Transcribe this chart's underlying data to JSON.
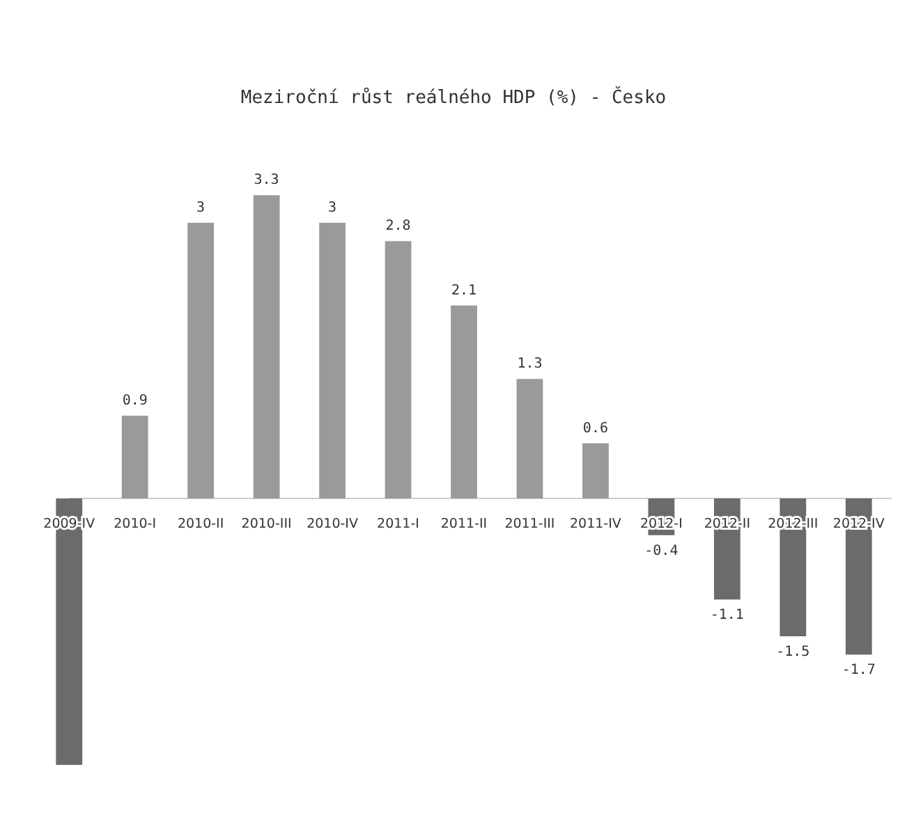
{
  "chart_data": {
    "type": "bar",
    "title": "Meziroční růst reálného HDP (%) - Česko",
    "categories": [
      "2009-IV",
      "2010-I",
      "2010-II",
      "2010-III",
      "2010-IV",
      "2011-I",
      "2011-II",
      "2011-III",
      "2011-IV",
      "2012-I",
      "2012-II",
      "2012-III",
      "2012-IV"
    ],
    "values": [
      -2.9,
      0.9,
      3,
      3.3,
      3,
      2.8,
      2.1,
      1.3,
      0.6,
      -0.4,
      -1.1,
      -1.5,
      -1.7
    ],
    "colors": [
      "#6b6b6b",
      "#9a9a9a",
      "#9a9a9a",
      "#9a9a9a",
      "#9a9a9a",
      "#9a9a9a",
      "#9a9a9a",
      "#9a9a9a",
      "#9a9a9a",
      "#6b6b6b",
      "#6b6b6b",
      "#6b6b6b",
      "#6b6b6b"
    ],
    "value_labels": [
      null,
      "0.9",
      "3",
      "3.3",
      "3",
      "2.8",
      "2.1",
      "1.3",
      "0.6",
      "-0.4",
      "-1.1",
      "-1.5",
      "-1.7"
    ]
  }
}
